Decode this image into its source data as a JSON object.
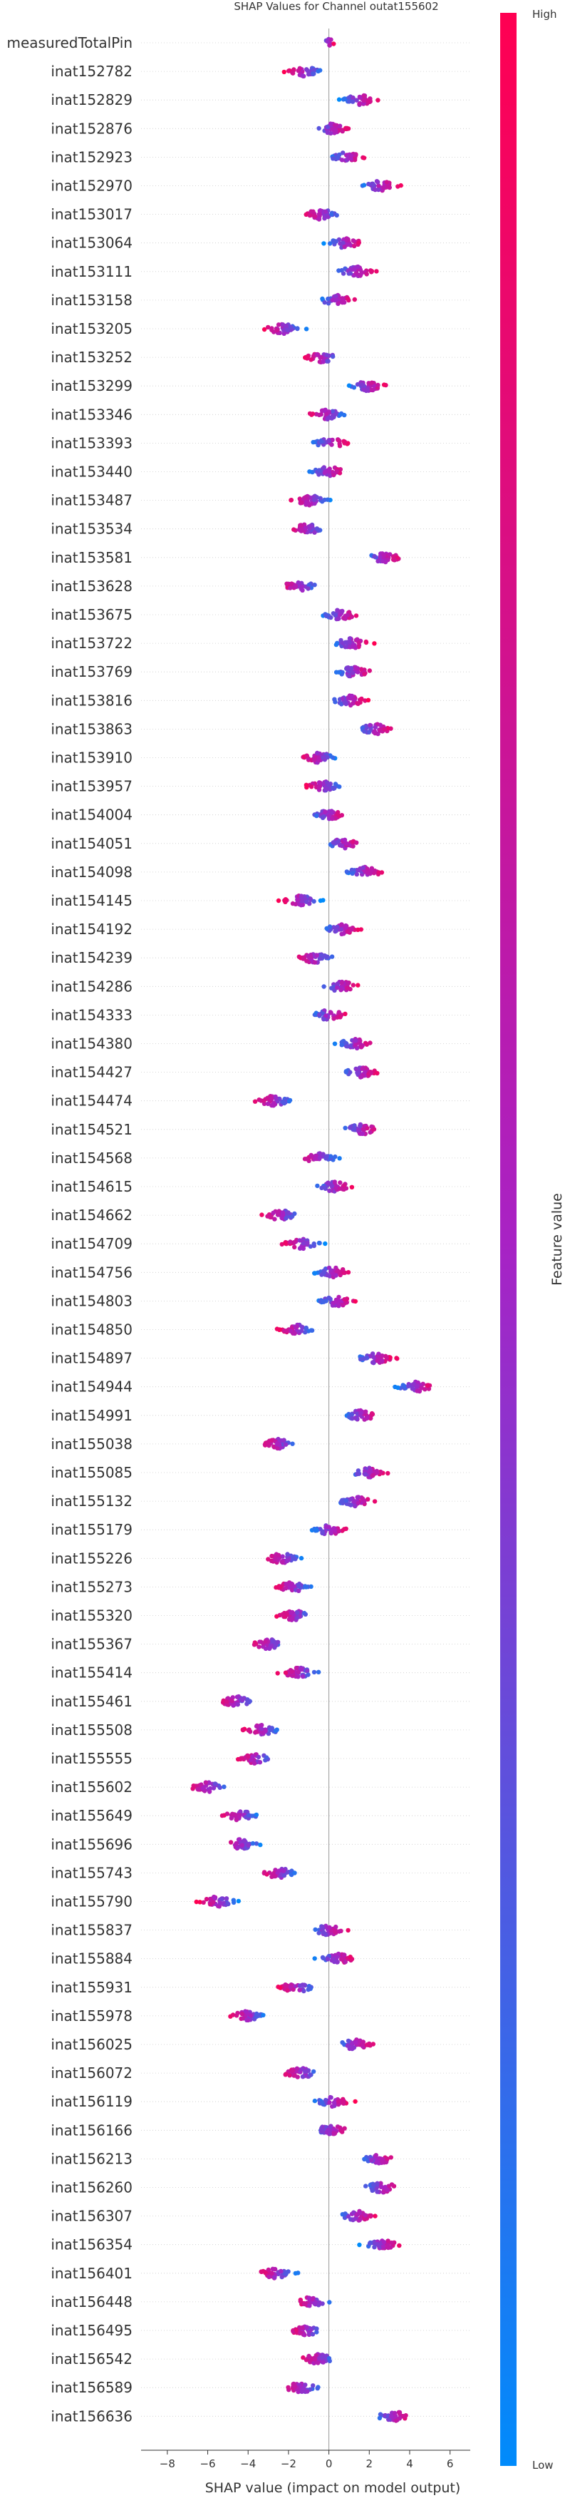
{
  "chart_data": {
    "type": "scatter",
    "subtype": "shap-beeswarm",
    "title": "SHAP Values for Channel outat155602",
    "xlabel": "SHAP value (impact on model output)",
    "xlim": [
      -9.3,
      7.0
    ],
    "xticks": [
      -8,
      -6,
      -4,
      -2,
      0,
      2,
      4,
      6
    ],
    "xtick_labels": [
      "−8",
      "−6",
      "−4",
      "−2",
      "0",
      "2",
      "4",
      "6"
    ],
    "zero_line": true,
    "colorbar": {
      "label": "Feature value",
      "high": "High",
      "low": "Low",
      "high_color": "#ff0052",
      "mid_color": "#a822c4",
      "low_color": "#008bfb"
    },
    "features": [
      {
        "name": "measuredTotalPin",
        "center": 0.0,
        "spread": 0.25
      },
      {
        "name": "inat152782",
        "center": -1.2,
        "spread": 0.9
      },
      {
        "name": "inat152829",
        "center": 1.5,
        "spread": 0.9
      },
      {
        "name": "inat152876",
        "center": 0.2,
        "spread": 0.9
      },
      {
        "name": "inat152923",
        "center": 0.9,
        "spread": 0.9
      },
      {
        "name": "inat152970",
        "center": 2.5,
        "spread": 0.9
      },
      {
        "name": "inat153017",
        "center": -0.4,
        "spread": 0.9
      },
      {
        "name": "inat153064",
        "center": 0.8,
        "spread": 0.9
      },
      {
        "name": "inat153111",
        "center": 1.3,
        "spread": 0.9
      },
      {
        "name": "inat153158",
        "center": 0.4,
        "spread": 0.9
      },
      {
        "name": "inat153205",
        "center": -2.3,
        "spread": 0.9
      },
      {
        "name": "inat153252",
        "center": -0.3,
        "spread": 0.9
      },
      {
        "name": "inat153299",
        "center": 1.9,
        "spread": 0.9
      },
      {
        "name": "inat153346",
        "center": -0.1,
        "spread": 0.9
      },
      {
        "name": "inat153393",
        "center": 0.1,
        "spread": 0.9
      },
      {
        "name": "inat153440",
        "center": 0.0,
        "spread": 0.9
      },
      {
        "name": "inat153487",
        "center": -0.9,
        "spread": 0.9
      },
      {
        "name": "inat153534",
        "center": -1.1,
        "spread": 0.9
      },
      {
        "name": "inat153581",
        "center": 2.7,
        "spread": 0.9
      },
      {
        "name": "inat153628",
        "center": -1.5,
        "spread": 0.9
      },
      {
        "name": "inat153675",
        "center": 0.6,
        "spread": 0.9
      },
      {
        "name": "inat153722",
        "center": 1.1,
        "spread": 0.9
      },
      {
        "name": "inat153769",
        "center": 1.2,
        "spread": 0.9
      },
      {
        "name": "inat153816",
        "center": 1.0,
        "spread": 0.9
      },
      {
        "name": "inat153863",
        "center": 2.3,
        "spread": 0.9
      },
      {
        "name": "inat153910",
        "center": -0.5,
        "spread": 0.9
      },
      {
        "name": "inat153957",
        "center": -0.3,
        "spread": 0.9
      },
      {
        "name": "inat154004",
        "center": 0.0,
        "spread": 0.9
      },
      {
        "name": "inat154051",
        "center": 0.7,
        "spread": 0.9
      },
      {
        "name": "inat154098",
        "center": 1.8,
        "spread": 0.9
      },
      {
        "name": "inat154145",
        "center": -1.4,
        "spread": 0.9
      },
      {
        "name": "inat154192",
        "center": 0.6,
        "spread": 0.9
      },
      {
        "name": "inat154239",
        "center": -0.7,
        "spread": 0.9
      },
      {
        "name": "inat154286",
        "center": 0.6,
        "spread": 0.9
      },
      {
        "name": "inat154333",
        "center": 0.0,
        "spread": 0.9
      },
      {
        "name": "inat154380",
        "center": 1.3,
        "spread": 0.9
      },
      {
        "name": "inat154427",
        "center": 1.6,
        "spread": 0.9
      },
      {
        "name": "inat154474",
        "center": -2.7,
        "spread": 0.9
      },
      {
        "name": "inat154521",
        "center": 1.6,
        "spread": 0.9
      },
      {
        "name": "inat154568",
        "center": -0.5,
        "spread": 0.9
      },
      {
        "name": "inat154615",
        "center": 0.3,
        "spread": 0.9
      },
      {
        "name": "inat154662",
        "center": -2.4,
        "spread": 0.9
      },
      {
        "name": "inat154709",
        "center": -1.4,
        "spread": 0.9
      },
      {
        "name": "inat154756",
        "center": 0.2,
        "spread": 0.9
      },
      {
        "name": "inat154803",
        "center": 0.4,
        "spread": 0.9
      },
      {
        "name": "inat154850",
        "center": -1.6,
        "spread": 0.9
      },
      {
        "name": "inat154897",
        "center": 2.3,
        "spread": 0.9
      },
      {
        "name": "inat154944",
        "center": 4.3,
        "spread": 0.9
      },
      {
        "name": "inat154991",
        "center": 1.6,
        "spread": 0.9
      },
      {
        "name": "inat155038",
        "center": -2.5,
        "spread": 0.9
      },
      {
        "name": "inat155085",
        "center": 2.0,
        "spread": 0.9
      },
      {
        "name": "inat155132",
        "center": 1.3,
        "spread": 0.9
      },
      {
        "name": "inat155179",
        "center": 0.1,
        "spread": 0.9
      },
      {
        "name": "inat155226",
        "center": -2.3,
        "spread": 0.9
      },
      {
        "name": "inat155273",
        "center": -1.8,
        "spread": 0.9
      },
      {
        "name": "inat155320",
        "center": -1.7,
        "spread": 0.9
      },
      {
        "name": "inat155367",
        "center": -3.0,
        "spread": 0.9
      },
      {
        "name": "inat155414",
        "center": -1.5,
        "spread": 0.9
      },
      {
        "name": "inat155461",
        "center": -4.6,
        "spread": 0.9
      },
      {
        "name": "inat155508",
        "center": -3.3,
        "spread": 0.9
      },
      {
        "name": "inat155555",
        "center": -3.6,
        "spread": 0.9
      },
      {
        "name": "inat155602",
        "center": -6.0,
        "spread": 0.9
      },
      {
        "name": "inat155649",
        "center": -4.4,
        "spread": 0.9
      },
      {
        "name": "inat155696",
        "center": -4.4,
        "spread": 0.9
      },
      {
        "name": "inat155743",
        "center": -2.5,
        "spread": 0.9
      },
      {
        "name": "inat155790",
        "center": -5.5,
        "spread": 0.9
      },
      {
        "name": "inat155837",
        "center": 0.0,
        "spread": 0.9
      },
      {
        "name": "inat155884",
        "center": 0.4,
        "spread": 0.9
      },
      {
        "name": "inat155931",
        "center": -1.6,
        "spread": 0.9
      },
      {
        "name": "inat155978",
        "center": -4.0,
        "spread": 0.9
      },
      {
        "name": "inat156025",
        "center": 1.3,
        "spread": 0.9
      },
      {
        "name": "inat156072",
        "center": -1.4,
        "spread": 0.9
      },
      {
        "name": "inat156119",
        "center": 0.2,
        "spread": 0.9
      },
      {
        "name": "inat156166",
        "center": 0.1,
        "spread": 0.9
      },
      {
        "name": "inat156213",
        "center": 2.4,
        "spread": 0.9
      },
      {
        "name": "inat156260",
        "center": 2.6,
        "spread": 0.9
      },
      {
        "name": "inat156307",
        "center": 1.4,
        "spread": 0.9
      },
      {
        "name": "inat156354",
        "center": 2.6,
        "spread": 0.9
      },
      {
        "name": "inat156401",
        "center": -2.6,
        "spread": 0.9
      },
      {
        "name": "inat156448",
        "center": -0.8,
        "spread": 0.9
      },
      {
        "name": "inat156495",
        "center": -1.1,
        "spread": 0.9
      },
      {
        "name": "inat156542",
        "center": -0.5,
        "spread": 0.9
      },
      {
        "name": "inat156589",
        "center": -1.4,
        "spread": 0.9
      },
      {
        "name": "inat156636",
        "center": 3.2,
        "spread": 0.9
      }
    ]
  }
}
